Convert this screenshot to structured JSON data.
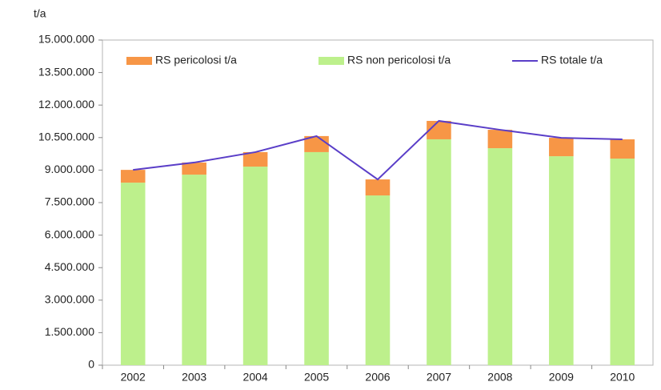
{
  "chart_data": {
    "type": "bar",
    "stacked": true,
    "y_label": "t/a",
    "categories": [
      "2002",
      "2003",
      "2004",
      "2005",
      "2006",
      "2007",
      "2008",
      "2009",
      "2010"
    ],
    "series": [
      {
        "name": "RS pericolosi t/a",
        "type": "bar",
        "color": "#f79646",
        "values": [
          590000,
          560000,
          670000,
          740000,
          740000,
          850000,
          850000,
          850000,
          890000
        ]
      },
      {
        "name": "RS non pericolosi t/a",
        "type": "bar",
        "color": "#bdf08c",
        "values": [
          8420000,
          8790000,
          9160000,
          9830000,
          7830000,
          10420000,
          10010000,
          9640000,
          9530000
        ]
      },
      {
        "name": "RS totale t/a",
        "type": "line",
        "color": "#5a3ec8",
        "values": [
          9010000,
          9350000,
          9830000,
          10570000,
          8570000,
          11270000,
          10860000,
          10490000,
          10420000
        ]
      }
    ],
    "ylim": [
      0,
      15000000
    ],
    "yticks": [
      0,
      {
        "value": 1500000,
        "label": "1.500.000"
      },
      {
        "value": 3000000,
        "label": "3.000.000"
      },
      {
        "value": 4500000,
        "label": "4.500.000"
      },
      {
        "value": 6000000,
        "label": "6.000.000"
      },
      {
        "value": 7500000,
        "label": "7.500.000"
      },
      {
        "value": 9000000,
        "label": "9.000.000"
      },
      {
        "value": 10500000,
        "label": "10.500.000"
      },
      {
        "value": 12000000,
        "label": "12.000.000"
      },
      {
        "value": 13500000,
        "label": "13.500.000"
      },
      {
        "value": 15000000,
        "label": "15.000.000"
      }
    ],
    "grid": false,
    "legend": "top"
  }
}
